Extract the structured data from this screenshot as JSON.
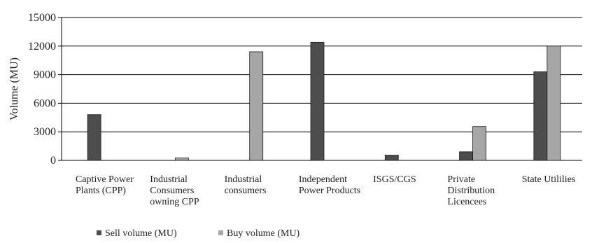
{
  "chart_data": {
    "type": "bar",
    "ylabel": "Volume (MU)",
    "xlabel": "",
    "ylim": [
      0,
      15000
    ],
    "yticks": [
      0,
      3000,
      6000,
      9000,
      12000,
      15000
    ],
    "ytick_labels": [
      "0",
      "3000",
      "6000",
      "9000",
      "12000",
      "15000"
    ],
    "grid": "horizontal",
    "legend_position": "bottom-left",
    "categories": [
      [
        "Captive Power",
        "Plants (CPP)"
      ],
      [
        "Industrial",
        "Consumers",
        "owning CPP"
      ],
      [
        "Industrial",
        "consumers"
      ],
      [
        "Independent",
        "Power Products"
      ],
      [
        "ISGS/CGS"
      ],
      [
        "Private",
        "Distribution",
        "Licencees"
      ],
      [
        "State Utililies"
      ]
    ],
    "series": [
      {
        "name": "Sell volume (MU)",
        "color": "#4d4d4d",
        "values": [
          4800,
          0,
          0,
          12400,
          550,
          900,
          9300
        ]
      },
      {
        "name": "Buy volume (MU)",
        "color": "#a6a6a6",
        "values": [
          0,
          250,
          11400,
          0,
          0,
          3550,
          12000
        ]
      }
    ]
  }
}
